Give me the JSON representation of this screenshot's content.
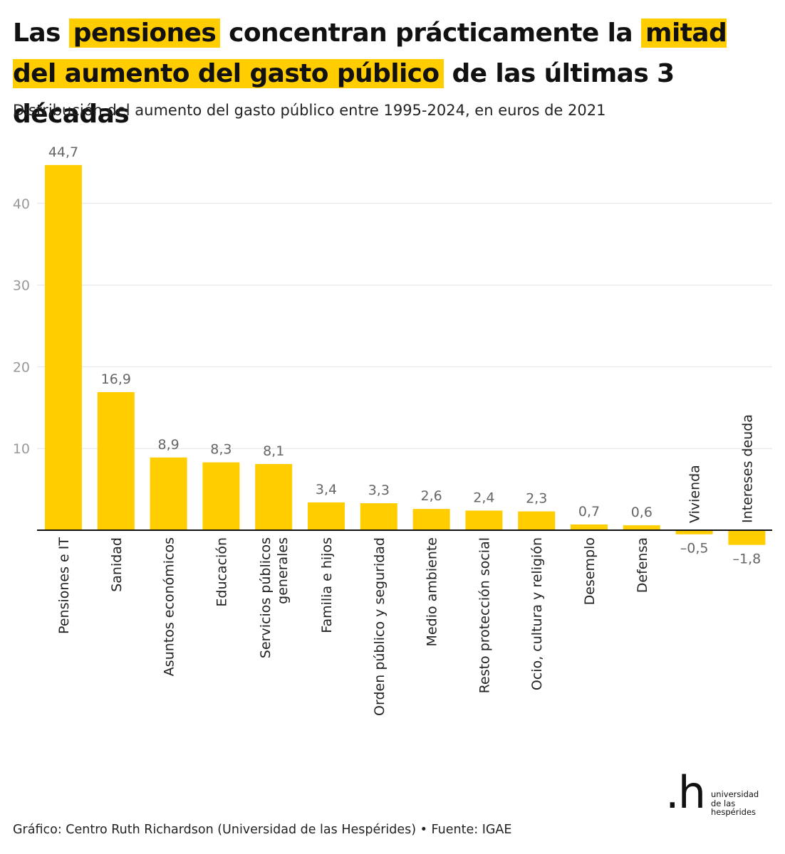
{
  "title": {
    "part1": "Las ",
    "hl1": "pensiones",
    "part2": " concentran prácticamente la ",
    "hl2": "mitad del aumento del gasto público",
    "part3": " de las últimas 3 décadas"
  },
  "subtitle": "Distribución del aumento del gasto público entre 1995-2024, en euros de 2021",
  "footer": "Gráfico: Centro Ruth Richardson (Universidad de las Hespérides) • Fuente: IGAE",
  "logo": {
    "mark": ".h",
    "text_lines": [
      "universidad",
      "de las",
      "hespérides"
    ]
  },
  "colors": {
    "bar": "#FFCD00",
    "highlight": "#FFCD00",
    "grid": "#e2e2e2",
    "axis": "#111111",
    "label": "#666666",
    "tick": "#999999"
  },
  "chart_data": {
    "type": "bar",
    "title": "",
    "xlabel": "",
    "ylabel": "",
    "ylim": [
      -2,
      46
    ],
    "yticks": [
      10,
      20,
      30,
      40
    ],
    "grid": true,
    "categories": [
      "Pensiones e IT",
      "Sanidad",
      "Asuntos económicos",
      "Educación",
      "Servicios públicos generales",
      "Familia e hijos",
      "Orden público y seguridad",
      "Medio ambiente",
      "Resto protección social",
      "Ocio, cultura y religión",
      "Desemplo",
      "Defensa",
      "Vivienda",
      "Intereses deuda"
    ],
    "category_lines": [
      [
        "Pensiones e IT"
      ],
      [
        "Sanidad"
      ],
      [
        "Asuntos económicos"
      ],
      [
        "Educación"
      ],
      [
        "Servicios públicos",
        "generales"
      ],
      [
        "Familia e hijos"
      ],
      [
        "Orden público y seguridad"
      ],
      [
        "Medio ambiente"
      ],
      [
        "Resto protección social"
      ],
      [
        "Ocio, cultura y religión"
      ],
      [
        "Desemplo"
      ],
      [
        "Defensa"
      ],
      [
        "Vivienda"
      ],
      [
        "Intereses deuda"
      ]
    ],
    "values": [
      44.7,
      16.9,
      8.9,
      8.3,
      8.1,
      3.4,
      3.3,
      2.6,
      2.4,
      2.3,
      0.7,
      0.6,
      -0.5,
      -1.8
    ],
    "value_labels": [
      "44,7",
      "16,9",
      "8,9",
      "8,3",
      "8,1",
      "3,4",
      "3,3",
      "2,6",
      "2,4",
      "2,3",
      "0,7",
      "0,6",
      "–0,5",
      "–1,8"
    ]
  }
}
